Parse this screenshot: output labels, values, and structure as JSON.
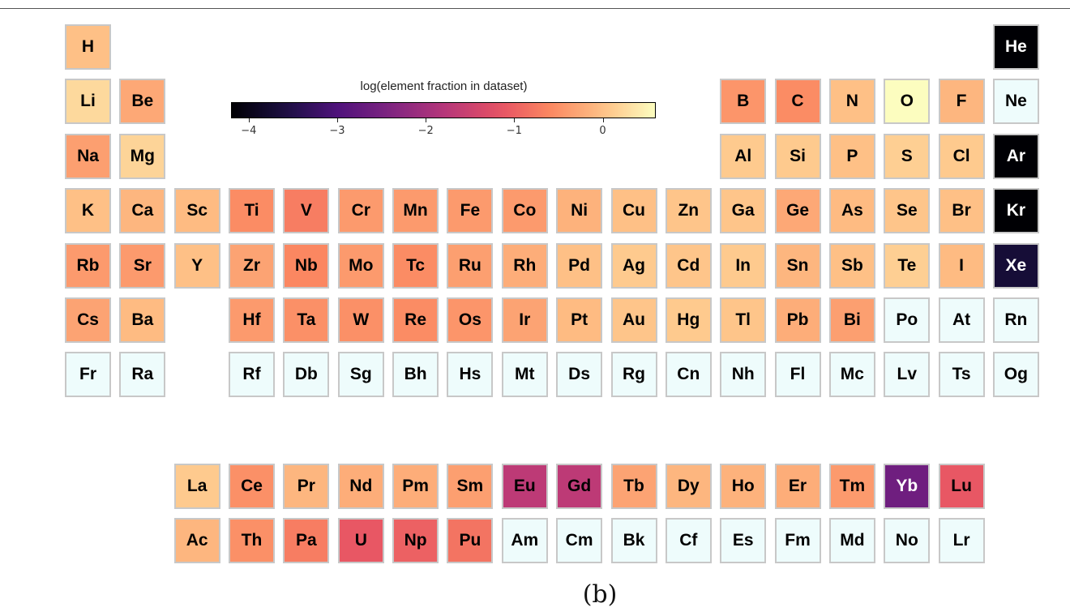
{
  "caption": "(b)",
  "chart_data": {
    "type": "heatmap",
    "colorbar": {
      "title": "log(element fraction in dataset)",
      "ticks": [
        "−4",
        "−3",
        "−2",
        "−1",
        "0"
      ],
      "tick_values": [
        -4,
        -3,
        -2,
        -1,
        0
      ],
      "range": [
        -4.2,
        0.6
      ],
      "colormap": "magma",
      "missing_color": "#eefcfc"
    },
    "elements": [
      {
        "symbol": "H",
        "row": 1,
        "col": 1,
        "value": 0.0
      },
      {
        "symbol": "He",
        "row": 1,
        "col": 18,
        "value": -4.2
      },
      {
        "symbol": "Li",
        "row": 2,
        "col": 1,
        "value": 0.25
      },
      {
        "symbol": "Be",
        "row": 2,
        "col": 2,
        "value": -0.25
      },
      {
        "symbol": "B",
        "row": 2,
        "col": 13,
        "value": -0.45
      },
      {
        "symbol": "C",
        "row": 2,
        "col": 14,
        "value": -0.55
      },
      {
        "symbol": "N",
        "row": 2,
        "col": 15,
        "value": 0.0
      },
      {
        "symbol": "O",
        "row": 2,
        "col": 16,
        "value": 0.6
      },
      {
        "symbol": "F",
        "row": 2,
        "col": 17,
        "value": -0.1
      },
      {
        "symbol": "Ne",
        "row": 2,
        "col": 18,
        "value": null
      },
      {
        "symbol": "Na",
        "row": 3,
        "col": 1,
        "value": -0.35
      },
      {
        "symbol": "Mg",
        "row": 3,
        "col": 2,
        "value": 0.2
      },
      {
        "symbol": "Al",
        "row": 3,
        "col": 13,
        "value": 0.1
      },
      {
        "symbol": "Si",
        "row": 3,
        "col": 14,
        "value": 0.1
      },
      {
        "symbol": "P",
        "row": 3,
        "col": 15,
        "value": 0.0
      },
      {
        "symbol": "S",
        "row": 3,
        "col": 16,
        "value": 0.15
      },
      {
        "symbol": "Cl",
        "row": 3,
        "col": 17,
        "value": 0.1
      },
      {
        "symbol": "Ar",
        "row": 3,
        "col": 18,
        "value": -4.2
      },
      {
        "symbol": "K",
        "row": 4,
        "col": 1,
        "value": 0.0
      },
      {
        "symbol": "Ca",
        "row": 4,
        "col": 2,
        "value": -0.1
      },
      {
        "symbol": "Sc",
        "row": 4,
        "col": 3,
        "value": -0.05
      },
      {
        "symbol": "Ti",
        "row": 4,
        "col": 4,
        "value": -0.55
      },
      {
        "symbol": "V",
        "row": 4,
        "col": 5,
        "value": -0.7
      },
      {
        "symbol": "Cr",
        "row": 4,
        "col": 6,
        "value": -0.4
      },
      {
        "symbol": "Mn",
        "row": 4,
        "col": 7,
        "value": -0.4
      },
      {
        "symbol": "Fe",
        "row": 4,
        "col": 8,
        "value": -0.4
      },
      {
        "symbol": "Co",
        "row": 4,
        "col": 9,
        "value": -0.4
      },
      {
        "symbol": "Ni",
        "row": 4,
        "col": 10,
        "value": -0.15
      },
      {
        "symbol": "Cu",
        "row": 4,
        "col": 11,
        "value": 0.0
      },
      {
        "symbol": "Zn",
        "row": 4,
        "col": 12,
        "value": 0.05
      },
      {
        "symbol": "Ga",
        "row": 4,
        "col": 13,
        "value": 0.05
      },
      {
        "symbol": "Ge",
        "row": 4,
        "col": 14,
        "value": -0.25
      },
      {
        "symbol": "As",
        "row": 4,
        "col": 15,
        "value": -0.05
      },
      {
        "symbol": "Se",
        "row": 4,
        "col": 16,
        "value": 0.05
      },
      {
        "symbol": "Br",
        "row": 4,
        "col": 17,
        "value": 0.0
      },
      {
        "symbol": "Kr",
        "row": 4,
        "col": 18,
        "value": -4.2
      },
      {
        "symbol": "Rb",
        "row": 5,
        "col": 1,
        "value": -0.4
      },
      {
        "symbol": "Sr",
        "row": 5,
        "col": 2,
        "value": -0.4
      },
      {
        "symbol": "Y",
        "row": 5,
        "col": 3,
        "value": 0.0
      },
      {
        "symbol": "Zr",
        "row": 5,
        "col": 4,
        "value": -0.3
      },
      {
        "symbol": "Nb",
        "row": 5,
        "col": 5,
        "value": -0.6
      },
      {
        "symbol": "Mo",
        "row": 5,
        "col": 6,
        "value": -0.4
      },
      {
        "symbol": "Tc",
        "row": 5,
        "col": 7,
        "value": -0.55
      },
      {
        "symbol": "Ru",
        "row": 5,
        "col": 8,
        "value": -0.35
      },
      {
        "symbol": "Rh",
        "row": 5,
        "col": 9,
        "value": -0.2
      },
      {
        "symbol": "Pd",
        "row": 5,
        "col": 10,
        "value": 0.0
      },
      {
        "symbol": "Ag",
        "row": 5,
        "col": 11,
        "value": 0.1
      },
      {
        "symbol": "Cd",
        "row": 5,
        "col": 12,
        "value": 0.05
      },
      {
        "symbol": "In",
        "row": 5,
        "col": 13,
        "value": 0.1
      },
      {
        "symbol": "Sn",
        "row": 5,
        "col": 14,
        "value": -0.1
      },
      {
        "symbol": "Sb",
        "row": 5,
        "col": 15,
        "value": 0.0
      },
      {
        "symbol": "Te",
        "row": 5,
        "col": 16,
        "value": 0.15
      },
      {
        "symbol": "I",
        "row": 5,
        "col": 17,
        "value": -0.05
      },
      {
        "symbol": "Xe",
        "row": 5,
        "col": 18,
        "value": -3.7
      },
      {
        "symbol": "Cs",
        "row": 6,
        "col": 1,
        "value": -0.3
      },
      {
        "symbol": "Ba",
        "row": 6,
        "col": 2,
        "value": -0.05
      },
      {
        "symbol": "Hf",
        "row": 6,
        "col": 4,
        "value": -0.4
      },
      {
        "symbol": "Ta",
        "row": 6,
        "col": 5,
        "value": -0.5
      },
      {
        "symbol": "W",
        "row": 6,
        "col": 6,
        "value": -0.5
      },
      {
        "symbol": "Re",
        "row": 6,
        "col": 7,
        "value": -0.55
      },
      {
        "symbol": "Os",
        "row": 6,
        "col": 8,
        "value": -0.45
      },
      {
        "symbol": "Ir",
        "row": 6,
        "col": 9,
        "value": -0.3
      },
      {
        "symbol": "Pt",
        "row": 6,
        "col": 10,
        "value": -0.05
      },
      {
        "symbol": "Au",
        "row": 6,
        "col": 11,
        "value": 0.05
      },
      {
        "symbol": "Hg",
        "row": 6,
        "col": 12,
        "value": 0.1
      },
      {
        "symbol": "Tl",
        "row": 6,
        "col": 13,
        "value": 0.05
      },
      {
        "symbol": "Pb",
        "row": 6,
        "col": 14,
        "value": -0.2
      },
      {
        "symbol": "Bi",
        "row": 6,
        "col": 15,
        "value": -0.35
      },
      {
        "symbol": "Po",
        "row": 6,
        "col": 16,
        "value": null
      },
      {
        "symbol": "At",
        "row": 6,
        "col": 17,
        "value": null
      },
      {
        "symbol": "Rn",
        "row": 6,
        "col": 18,
        "value": null
      },
      {
        "symbol": "Fr",
        "row": 7,
        "col": 1,
        "value": null
      },
      {
        "symbol": "Ra",
        "row": 7,
        "col": 2,
        "value": null
      },
      {
        "symbol": "Rf",
        "row": 7,
        "col": 4,
        "value": null
      },
      {
        "symbol": "Db",
        "row": 7,
        "col": 5,
        "value": null
      },
      {
        "symbol": "Sg",
        "row": 7,
        "col": 6,
        "value": null
      },
      {
        "symbol": "Bh",
        "row": 7,
        "col": 7,
        "value": null
      },
      {
        "symbol": "Hs",
        "row": 7,
        "col": 8,
        "value": null
      },
      {
        "symbol": "Mt",
        "row": 7,
        "col": 9,
        "value": null
      },
      {
        "symbol": "Ds",
        "row": 7,
        "col": 10,
        "value": null
      },
      {
        "symbol": "Rg",
        "row": 7,
        "col": 11,
        "value": null
      },
      {
        "symbol": "Cn",
        "row": 7,
        "col": 12,
        "value": null
      },
      {
        "symbol": "Nh",
        "row": 7,
        "col": 13,
        "value": null
      },
      {
        "symbol": "Fl",
        "row": 7,
        "col": 14,
        "value": null
      },
      {
        "symbol": "Mc",
        "row": 7,
        "col": 15,
        "value": null
      },
      {
        "symbol": "Lv",
        "row": 7,
        "col": 16,
        "value": null
      },
      {
        "symbol": "Ts",
        "row": 7,
        "col": 17,
        "value": null
      },
      {
        "symbol": "Og",
        "row": 7,
        "col": 18,
        "value": null
      },
      {
        "symbol": "La",
        "row": 9,
        "col": 3,
        "value": 0.1
      },
      {
        "symbol": "Ce",
        "row": 9,
        "col": 4,
        "value": -0.5
      },
      {
        "symbol": "Pr",
        "row": 9,
        "col": 5,
        "value": -0.1
      },
      {
        "symbol": "Nd",
        "row": 9,
        "col": 6,
        "value": -0.2
      },
      {
        "symbol": "Pm",
        "row": 9,
        "col": 7,
        "value": -0.2
      },
      {
        "symbol": "Sm",
        "row": 9,
        "col": 8,
        "value": -0.35
      },
      {
        "symbol": "Eu",
        "row": 9,
        "col": 9,
        "value": -1.7
      },
      {
        "symbol": "Gd",
        "row": 9,
        "col": 10,
        "value": -1.7
      },
      {
        "symbol": "Tb",
        "row": 9,
        "col": 11,
        "value": -0.3
      },
      {
        "symbol": "Dy",
        "row": 9,
        "col": 12,
        "value": -0.1
      },
      {
        "symbol": "Ho",
        "row": 9,
        "col": 13,
        "value": -0.15
      },
      {
        "symbol": "Er",
        "row": 9,
        "col": 14,
        "value": -0.2
      },
      {
        "symbol": "Tm",
        "row": 9,
        "col": 15,
        "value": -0.4
      },
      {
        "symbol": "Yb",
        "row": 9,
        "col": 16,
        "value": -2.6
      },
      {
        "symbol": "Lu",
        "row": 9,
        "col": 17,
        "value": -1.1
      },
      {
        "symbol": "Ac",
        "row": 10,
        "col": 3,
        "value": -0.1
      },
      {
        "symbol": "Th",
        "row": 10,
        "col": 4,
        "value": -0.5
      },
      {
        "symbol": "Pa",
        "row": 10,
        "col": 5,
        "value": -0.7
      },
      {
        "symbol": "U",
        "row": 10,
        "col": 6,
        "value": -1.1
      },
      {
        "symbol": "Np",
        "row": 10,
        "col": 7,
        "value": -1.0
      },
      {
        "symbol": "Pu",
        "row": 10,
        "col": 8,
        "value": -0.8
      },
      {
        "symbol": "Am",
        "row": 10,
        "col": 9,
        "value": null
      },
      {
        "symbol": "Cm",
        "row": 10,
        "col": 10,
        "value": null
      },
      {
        "symbol": "Bk",
        "row": 10,
        "col": 11,
        "value": null
      },
      {
        "symbol": "Cf",
        "row": 10,
        "col": 12,
        "value": null
      },
      {
        "symbol": "Es",
        "row": 10,
        "col": 13,
        "value": null
      },
      {
        "symbol": "Fm",
        "row": 10,
        "col": 14,
        "value": null
      },
      {
        "symbol": "Md",
        "row": 10,
        "col": 15,
        "value": null
      },
      {
        "symbol": "No",
        "row": 10,
        "col": 16,
        "value": null
      },
      {
        "symbol": "Lr",
        "row": 10,
        "col": 17,
        "value": null
      }
    ]
  }
}
